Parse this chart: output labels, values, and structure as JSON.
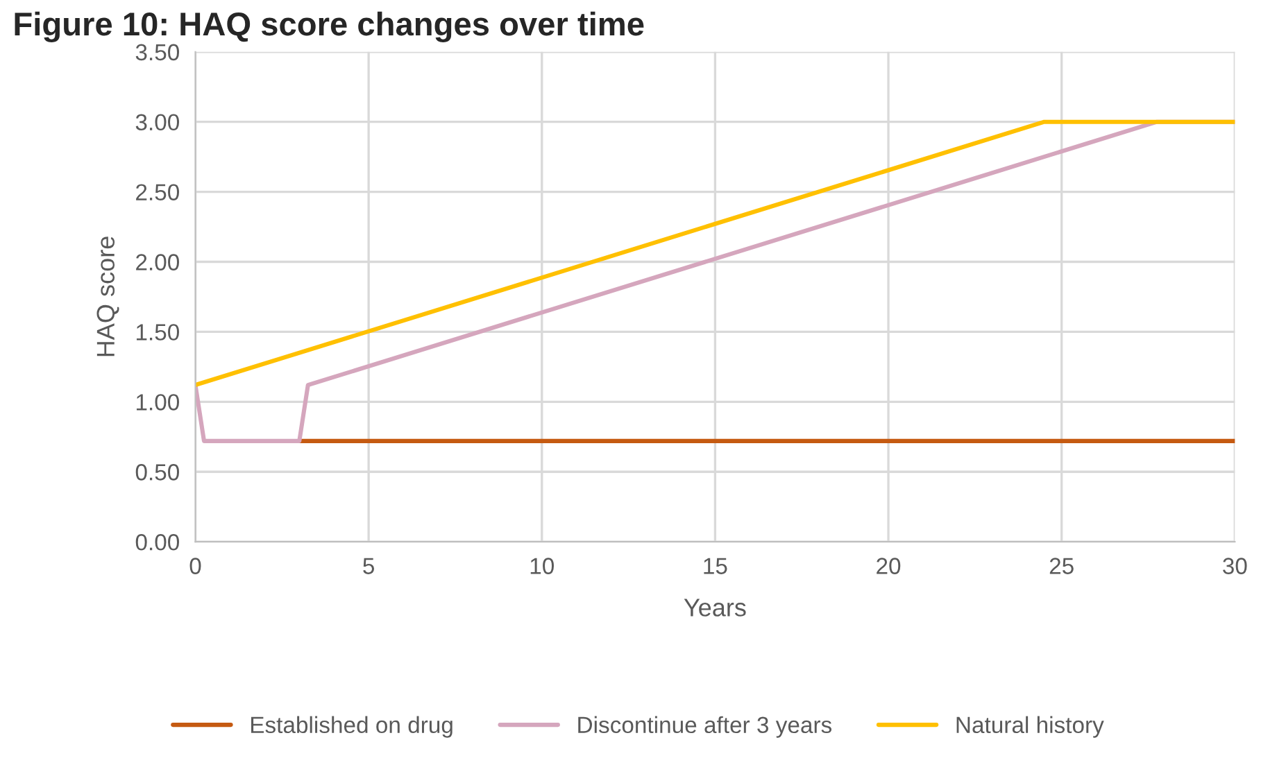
{
  "chart_data": {
    "type": "line",
    "title": "Figure 10: HAQ score changes over time",
    "xlabel": "Years",
    "ylabel": "HAQ score",
    "xlim": [
      0,
      30
    ],
    "xticks": [
      0,
      5,
      10,
      15,
      20,
      25,
      30
    ],
    "ylim": [
      0,
      3.5
    ],
    "yticks": [
      {
        "value": 0,
        "label": "0.00"
      },
      {
        "value": 0.5,
        "label": "0.50"
      },
      {
        "value": 1,
        "label": "1.00"
      },
      {
        "value": 1.5,
        "label": "1.50"
      },
      {
        "value": 2,
        "label": "2.00"
      },
      {
        "value": 2.5,
        "label": "2.50"
      },
      {
        "value": 3,
        "label": "3.00"
      },
      {
        "value": 3.5,
        "label": "3.50"
      }
    ],
    "grid": true,
    "legend": "bottom",
    "marker": "none",
    "line_style": "solid",
    "series": [
      {
        "name": "Established on drug",
        "color": "#c55a11",
        "x": [
          3,
          30
        ],
        "values": [
          0.72,
          0.72
        ]
      },
      {
        "name": "Discontinue after 3 years",
        "color": "#d5a6bd",
        "x": [
          0,
          0.25,
          3,
          3.25,
          27.75,
          30
        ],
        "values": [
          1.12,
          0.72,
          0.72,
          1.12,
          3.0,
          3.0
        ]
      },
      {
        "name": "Natural history",
        "color": "#ffc000",
        "x": [
          0,
          24.5,
          30
        ],
        "values": [
          1.12,
          3.0,
          3.0
        ]
      }
    ]
  }
}
